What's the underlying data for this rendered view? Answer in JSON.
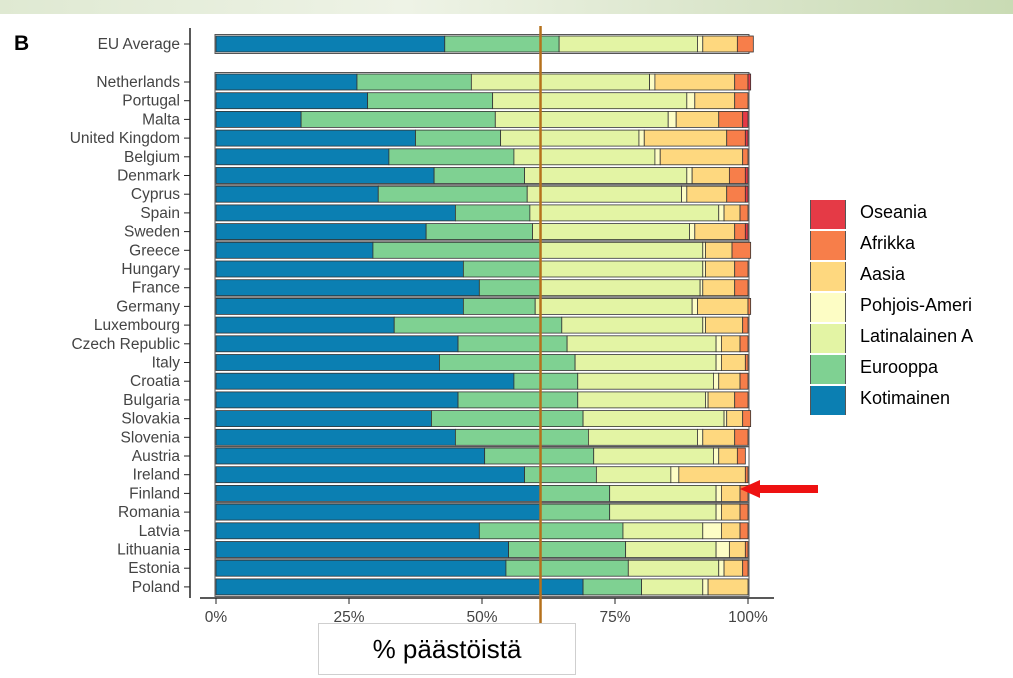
{
  "panel_label": "B",
  "xlabel": "% päästöistä",
  "colors": {
    "Kotimainen": "#0b7fb2",
    "Eurooppa": "#7fd192",
    "Latinalainen Amerikka": "#e3f4a4",
    "Pohjois-Amerikka": "#fdfdc5",
    "Aasia": "#fed87f",
    "Afrikka": "#f77e4a",
    "Oseania": "#e53a46"
  },
  "legend": [
    "Oseania",
    "Afrikka",
    "Aasia",
    "Pohjois-Ameri",
    "Latinalainen A",
    "Eurooppa",
    "Kotimainen"
  ],
  "chart_data": {
    "type": "bar",
    "orientation": "horizontal",
    "stacked": true,
    "xlabel": "% päästöistä",
    "xlim": [
      0,
      100
    ],
    "xticks": [
      "0%",
      "25%",
      "50%",
      "75%",
      "100%"
    ],
    "reference_line": 61,
    "highlighted_category": "Finland",
    "categories": [
      "EU Average",
      "Netherlands",
      "Portugal",
      "Malta",
      "United Kingdom",
      "Belgium",
      "Denmark",
      "Cyprus",
      "Spain",
      "Sweden",
      "Greece",
      "Hungary",
      "France",
      "Germany",
      "Luxembourg",
      "Czech Republic",
      "Italy",
      "Croatia",
      "Bulgaria",
      "Slovakia",
      "Slovenia",
      "Austria",
      "Ireland",
      "Finland",
      "Romania",
      "Latvia",
      "Lithuania",
      "Estonia",
      "Poland"
    ],
    "groups": [
      [
        0
      ],
      [
        1,
        2,
        3,
        4,
        5,
        6
      ],
      [
        7,
        8,
        9
      ],
      [
        10,
        11,
        12
      ],
      [
        13,
        14,
        15,
        16,
        17,
        18,
        19,
        20
      ],
      [
        21,
        22,
        23
      ],
      [
        24,
        25,
        26
      ],
      [
        27,
        28
      ]
    ],
    "series": [
      {
        "name": "Kotimainen",
        "values": [
          43,
          26.5,
          28.5,
          16,
          37.5,
          32.5,
          41,
          30.5,
          45,
          39.5,
          29.5,
          46.5,
          49.5,
          46.5,
          33.5,
          45.5,
          42,
          56,
          45.5,
          40.5,
          45,
          50.5,
          58,
          61,
          61,
          49.5,
          55,
          54.5,
          69
        ]
      },
      {
        "name": "Eurooppa",
        "values": [
          21.5,
          21.5,
          23.5,
          36.5,
          16,
          23.5,
          17,
          28,
          14,
          20,
          31.5,
          14.5,
          11.5,
          13.5,
          31.5,
          20.5,
          25.5,
          12,
          22.5,
          28.5,
          25,
          20.5,
          13.5,
          13,
          13,
          27,
          22,
          23,
          11
        ]
      },
      {
        "name": "Latinalainen Amerikka",
        "values": [
          26,
          33.5,
          36.5,
          32.5,
          26,
          26.5,
          30.5,
          29,
          35.5,
          29.5,
          30.5,
          30.5,
          30,
          29.5,
          26.5,
          28,
          26.5,
          25.5,
          24,
          26.5,
          20.5,
          22.5,
          14,
          20,
          20,
          15,
          17,
          17,
          11.5
        ]
      },
      {
        "name": "Pohjois-Amerikka",
        "values": [
          1,
          1,
          1.5,
          1.5,
          1,
          1,
          1,
          1,
          1,
          1,
          0.5,
          0.5,
          0.5,
          1,
          0.5,
          1,
          1,
          1,
          0.5,
          0.5,
          1,
          1,
          1.5,
          1,
          1,
          3.5,
          2.5,
          1,
          1
        ]
      },
      {
        "name": "Aasia",
        "values": [
          6.5,
          15,
          7.5,
          8,
          15.5,
          15.5,
          7,
          7.5,
          3,
          7.5,
          5,
          5.5,
          6,
          9.5,
          7,
          3.5,
          4.5,
          4,
          5,
          3,
          6,
          3.5,
          12.5,
          3.5,
          3.5,
          3.5,
          3,
          3.5,
          7.5
        ]
      },
      {
        "name": "Afrikka",
        "values": [
          3,
          2.5,
          2.5,
          4.5,
          3.5,
          1,
          3,
          3.5,
          1.5,
          2,
          3.5,
          2.5,
          2.5,
          0.5,
          1,
          1.5,
          0.5,
          1.5,
          2.5,
          1.5,
          2.5,
          1.5,
          0.5,
          1.5,
          1.5,
          1.5,
          0.5,
          1,
          0
        ]
      },
      {
        "name": "Oseania",
        "values": [
          0,
          0.5,
          0,
          1,
          0.5,
          0,
          0.5,
          0.5,
          0,
          0.5,
          0,
          0,
          0,
          0,
          0,
          0,
          0,
          0,
          0,
          0,
          0,
          0,
          0,
          0,
          0,
          0,
          0,
          0,
          0
        ]
      }
    ]
  }
}
